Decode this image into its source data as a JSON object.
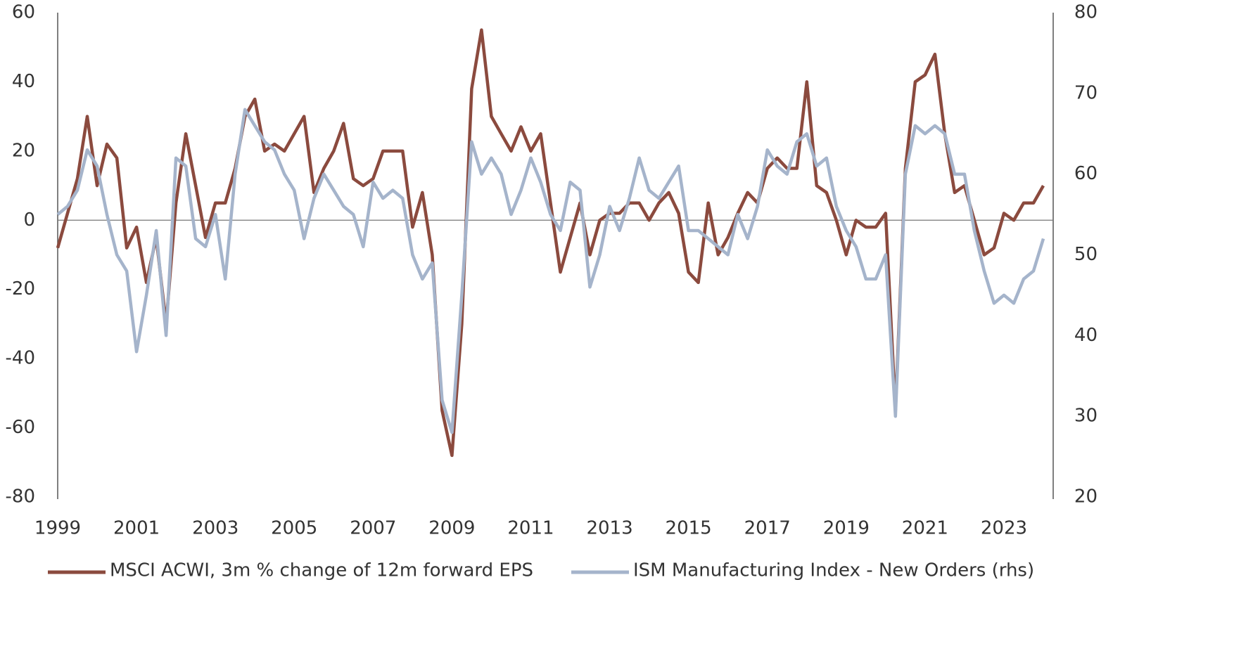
{
  "chart_data": {
    "type": "line",
    "x": [
      1999,
      1999.25,
      1999.5,
      1999.75,
      2000,
      2000.25,
      2000.5,
      2000.75,
      2001,
      2001.25,
      2001.5,
      2001.75,
      2002,
      2002.25,
      2002.5,
      2002.75,
      2003,
      2003.25,
      2003.5,
      2003.75,
      2004,
      2004.25,
      2004.5,
      2004.75,
      2005,
      2005.25,
      2005.5,
      2005.75,
      2006,
      2006.25,
      2006.5,
      2006.75,
      2007,
      2007.25,
      2007.5,
      2007.75,
      2008,
      2008.25,
      2008.5,
      2008.75,
      2009,
      2009.25,
      2009.5,
      2009.75,
      2010,
      2010.25,
      2010.5,
      2010.75,
      2011,
      2011.25,
      2011.5,
      2011.75,
      2012,
      2012.25,
      2012.5,
      2012.75,
      2013,
      2013.25,
      2013.5,
      2013.75,
      2014,
      2014.25,
      2014.5,
      2014.75,
      2015,
      2015.25,
      2015.5,
      2015.75,
      2016,
      2016.25,
      2016.5,
      2016.75,
      2017,
      2017.25,
      2017.5,
      2017.75,
      2018,
      2018.25,
      2018.5,
      2018.75,
      2019,
      2019.25,
      2019.5,
      2019.75,
      2020,
      2020.25,
      2020.5,
      2020.75,
      2021,
      2021.25,
      2021.5,
      2021.75,
      2022,
      2022.25,
      2022.5,
      2022.75,
      2023,
      2023.25,
      2023.5,
      2023.75,
      2024
    ],
    "series": [
      {
        "name": "MSCI ACWI, 3m % change of 12m forward EPS",
        "color": "#8b4a3e",
        "values": [
          -8,
          2,
          12,
          30,
          10,
          22,
          18,
          -8,
          -2,
          -18,
          -5,
          -30,
          5,
          25,
          10,
          -5,
          5,
          5,
          15,
          30,
          35,
          20,
          22,
          20,
          25,
          30,
          8,
          15,
          20,
          28,
          12,
          10,
          12,
          20,
          20,
          20,
          -2,
          8,
          -10,
          -55,
          -68,
          -30,
          38,
          55,
          30,
          25,
          20,
          27,
          20,
          25,
          5,
          -15,
          -5,
          5,
          -10,
          0,
          2,
          2,
          5,
          5,
          0,
          5,
          8,
          2,
          -15,
          -18,
          5,
          -10,
          -5,
          2,
          8,
          5,
          15,
          18,
          15,
          15,
          40,
          10,
          8,
          0,
          -10,
          0,
          -2,
          -2,
          2,
          -55,
          15,
          40,
          42,
          48,
          25,
          8,
          10,
          0,
          -10,
          -8,
          2,
          0,
          5,
          5,
          10
        ]
      },
      {
        "name": "ISM Manufacturing Index - New Orders (rhs)",
        "color": "#a5b4cb",
        "axis": "y2",
        "values": [
          55,
          56,
          58,
          63,
          61,
          55,
          50,
          48,
          38,
          45,
          53,
          40,
          62,
          61,
          52,
          51,
          55,
          47,
          60,
          68,
          66,
          64,
          63,
          60,
          58,
          52,
          57,
          60,
          58,
          56,
          55,
          51,
          59,
          57,
          58,
          57,
          50,
          47,
          49,
          32,
          28,
          45,
          64,
          60,
          62,
          60,
          55,
          58,
          62,
          59,
          55,
          53,
          59,
          58,
          46,
          50,
          56,
          53,
          57,
          62,
          58,
          57,
          59,
          61,
          53,
          53,
          52,
          51,
          50,
          55,
          52,
          56,
          63,
          61,
          60,
          64,
          65,
          61,
          62,
          56,
          53,
          51,
          47,
          47,
          50,
          30,
          60,
          66,
          65,
          66,
          65,
          60,
          60,
          53,
          48,
          44,
          45,
          44,
          47,
          48,
          52
        ]
      }
    ],
    "xlim": [
      1999,
      2024.25
    ],
    "xticks": [
      1999,
      2001,
      2003,
      2005,
      2007,
      2009,
      2011,
      2013,
      2015,
      2017,
      2019,
      2021,
      2023
    ],
    "ylim": [
      -80,
      60
    ],
    "yticks": [
      -80,
      -60,
      -40,
      -20,
      0,
      20,
      40,
      60
    ],
    "y2lim": [
      20,
      80
    ],
    "y2ticks": [
      20,
      30,
      40,
      50,
      60,
      70,
      80
    ]
  }
}
